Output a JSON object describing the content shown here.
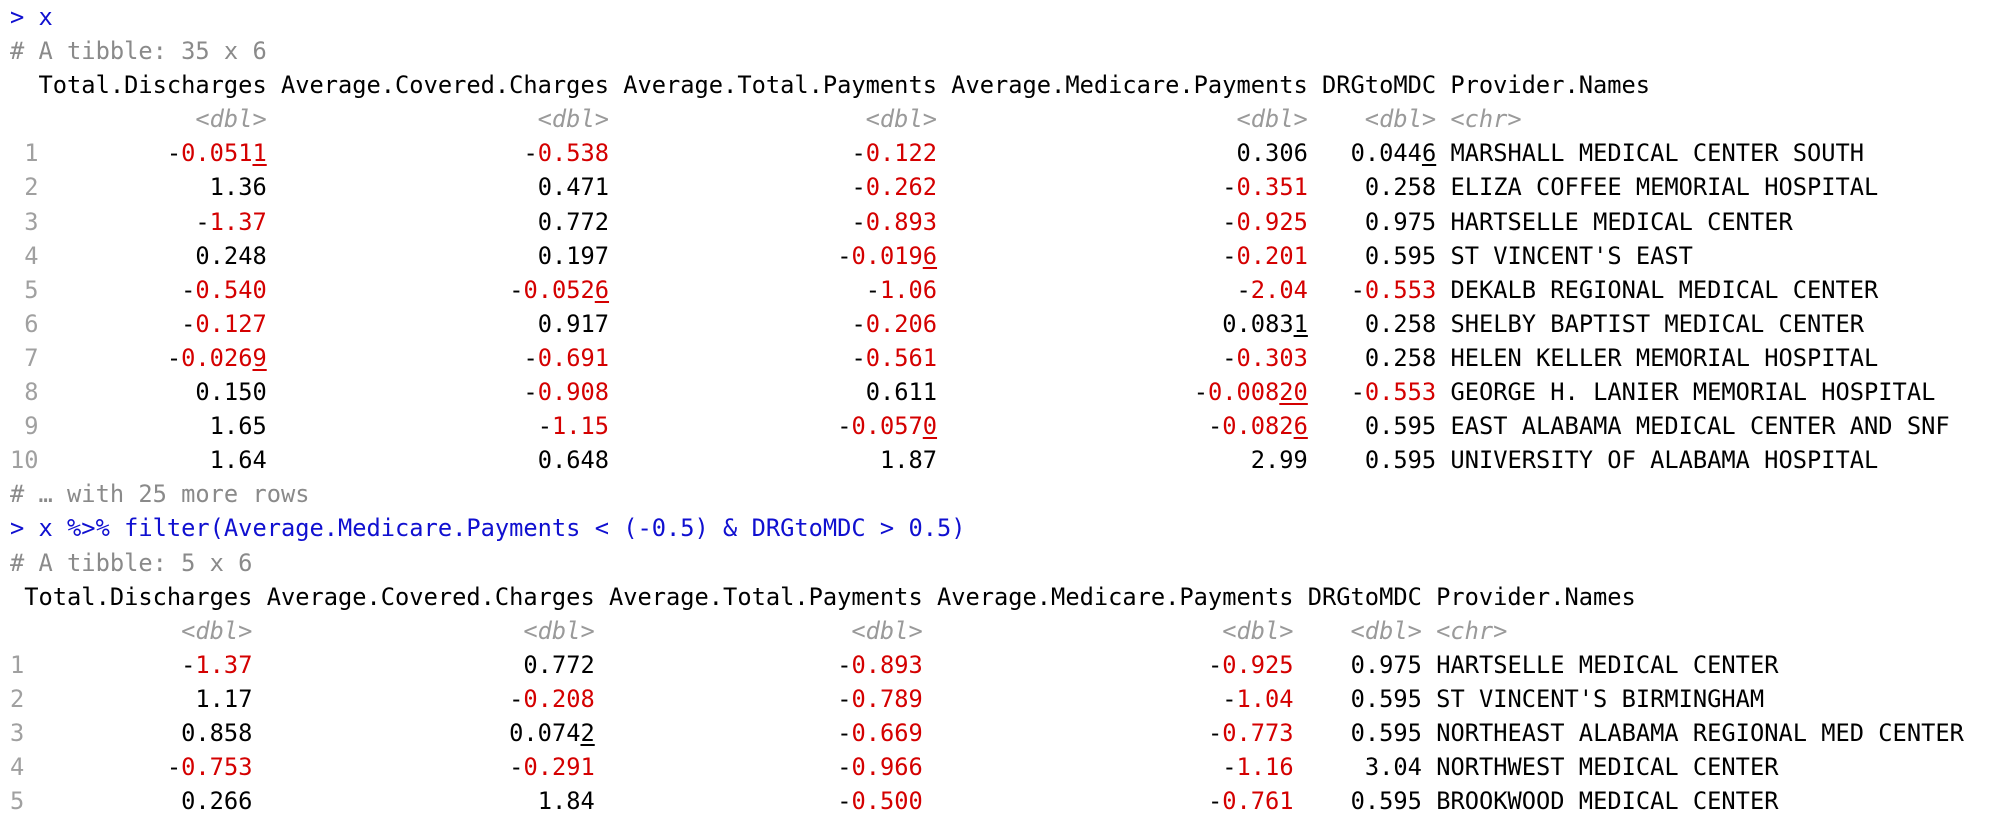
{
  "console": {
    "cmd1": "> x",
    "tibble1_desc": "# A tibble: 35 x 6",
    "tibble1_header": "  Total.Discharges Average.Covered.Charges Average.Total.Payments Average.Medicare.Payments DRGtoMDC Provider.Names",
    "tibble1_types": "             <dbl>                   <dbl>                  <dbl>                     <dbl>    <dbl> <chr>",
    "tibble1_rows": [
      {
        "n": " 1",
        "c1": "-0.0511",
        "c2": "-0.538",
        "c3": "-0.122",
        "c4": "0.306",
        "c5": "0.0446",
        "c6": "MARSHALL MEDICAL CENTER SOUTH"
      },
      {
        "n": " 2",
        "c1": "1.36",
        "c2": "0.471",
        "c3": "-0.262",
        "c4": "-0.351",
        "c5": "0.258",
        "c6": "ELIZA COFFEE MEMORIAL HOSPITAL"
      },
      {
        "n": " 3",
        "c1": "-1.37",
        "c2": "0.772",
        "c3": "-0.893",
        "c4": "-0.925",
        "c5": "0.975",
        "c6": "HARTSELLE MEDICAL CENTER"
      },
      {
        "n": " 4",
        "c1": "0.248",
        "c2": "0.197",
        "c3": "-0.0196",
        "c4": "-0.201",
        "c5": "0.595",
        "c6": "ST VINCENT'S EAST"
      },
      {
        "n": " 5",
        "c1": "-0.540",
        "c2": "-0.0526",
        "c3": "-1.06",
        "c4": "-2.04",
        "c5": "-0.553",
        "c6": "DEKALB REGIONAL MEDICAL CENTER"
      },
      {
        "n": " 6",
        "c1": "-0.127",
        "c2": "0.917",
        "c3": "-0.206",
        "c4": "0.0831",
        "c5": "0.258",
        "c6": "SHELBY BAPTIST MEDICAL CENTER"
      },
      {
        "n": " 7",
        "c1": "-0.0269",
        "c2": "-0.691",
        "c3": "-0.561",
        "c4": "-0.303",
        "c5": "0.258",
        "c6": "HELEN KELLER MEMORIAL HOSPITAL"
      },
      {
        "n": " 8",
        "c1": "0.150",
        "c2": "-0.908",
        "c3": "0.611",
        "c4": "-0.00820",
        "c5": "-0.553",
        "c6": "GEORGE H. LANIER MEMORIAL HOSPITAL"
      },
      {
        "n": " 9",
        "c1": "1.65",
        "c2": "-1.15",
        "c3": "-0.0570",
        "c4": "-0.0826",
        "c5": "0.595",
        "c6": "EAST ALABAMA MEDICAL CENTER AND SNF"
      },
      {
        "n": "10",
        "c1": "1.64",
        "c2": "0.648",
        "c3": "1.87",
        "c4": "2.99",
        "c5": "0.595",
        "c6": "UNIVERSITY OF ALABAMA HOSPITAL"
      }
    ],
    "tibble1_more": "# … with 25 more rows",
    "cmd2": "> x %>% filter(Average.Medicare.Payments < (-0.5) & DRGtoMDC > 0.5)",
    "tibble2_desc": "# A tibble: 5 x 6",
    "tibble2_header": " Total.Discharges Average.Covered.Charges Average.Total.Payments Average.Medicare.Payments DRGtoMDC Provider.Names",
    "tibble2_types": "            <dbl>                   <dbl>                  <dbl>                     <dbl>    <dbl> <chr>",
    "tibble2_rows": [
      {
        "n": "1",
        "c1": "-1.37",
        "c2": "0.772",
        "c3": "-0.893",
        "c4": "-0.925",
        "c5": "0.975",
        "c6": "HARTSELLE MEDICAL CENTER"
      },
      {
        "n": "2",
        "c1": "1.17",
        "c2": "-0.208",
        "c3": "-0.789",
        "c4": "-1.04",
        "c5": "0.595",
        "c6": "ST VINCENT'S BIRMINGHAM"
      },
      {
        "n": "3",
        "c1": "0.858",
        "c2": "0.0742",
        "c3": "-0.669",
        "c4": "-0.773",
        "c5": "0.595",
        "c6": "NORTHEAST ALABAMA REGIONAL MED CENTER"
      },
      {
        "n": "4",
        "c1": "-0.753",
        "c2": "-0.291",
        "c3": "-0.966",
        "c4": "-1.16",
        "c5": "3.04",
        "c6": "NORTHWEST MEDICAL CENTER"
      },
      {
        "n": "5",
        "c1": "0.266",
        "c2": "1.84",
        "c3": "-0.500",
        "c4": "-0.761",
        "c5": "0.595",
        "c6": "BROOKWOOD MEDICAL CENTER"
      }
    ]
  },
  "colors": {
    "command": "#1010d0",
    "negative": "#d40000",
    "meta": "#8a8a8a",
    "row_number": "#a0a0a0"
  }
}
